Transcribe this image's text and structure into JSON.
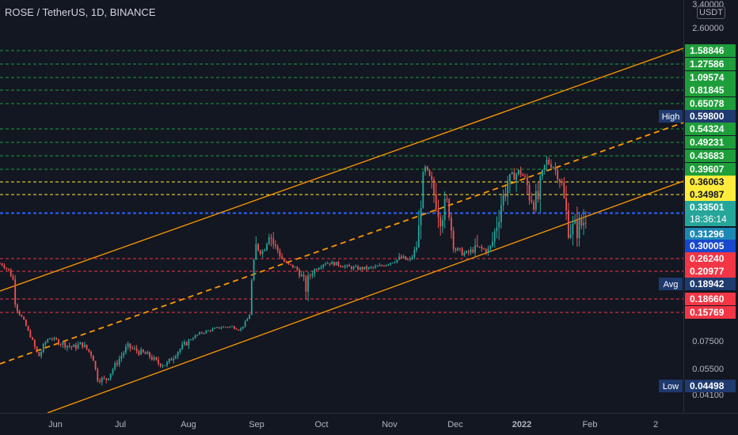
{
  "header": {
    "title": "ROSE / TetherUS, 1D, BINANCE"
  },
  "price_scale": {
    "unit": "USDT",
    "axis_ticks": [
      "3.40000",
      "2.60000",
      "0.07500",
      "0.05500",
      "0.04100"
    ],
    "hidden_tick": "0.04100"
  },
  "time_axis": {
    "labels": [
      "Jun",
      "Jul",
      "Aug",
      "Sep",
      "Oct",
      "Nov",
      "Dec",
      "2022",
      "Feb",
      "2"
    ]
  },
  "levels": {
    "resistance": [
      "1.58846",
      "1.27586",
      "1.09574",
      "0.81845",
      "0.65078",
      "0.54324",
      "0.49231",
      "0.43683",
      "0.39607"
    ],
    "pivot": [
      "0.36063",
      "0.34987"
    ],
    "support": [
      "0.26240",
      "0.20977",
      "0.18660",
      "0.15769"
    ]
  },
  "markers": {
    "high": {
      "label": "High",
      "value": "0.59800"
    },
    "avg": {
      "label": "Avg",
      "value": "0.18942"
    },
    "low": {
      "label": "Low",
      "value": "0.04498"
    }
  },
  "last_price": {
    "value": "0.33501",
    "countdown": "18:36:14"
  },
  "extra_badges": {
    "first": "0.31296",
    "second": "0.30005"
  },
  "colors": {
    "background": "#131722",
    "up": "#26a69a",
    "down": "#ef5350",
    "resistance": "#1e9e3a",
    "pivot": "#ffeb3b",
    "support": "#f23645",
    "channel": "#ff9800",
    "last_price_line": "#2962ff",
    "axis_text": "#b2b5be"
  },
  "chart_data": {
    "type": "candlestick",
    "title": "ROSE / TetherUS, 1D, BINANCE",
    "scale": "log",
    "ylim": [
      0.041,
      3.4
    ],
    "x_range": [
      "2021-05-10",
      "2022-02-20"
    ],
    "close_series": [
      [
        "2021-05-10",
        0.24
      ],
      [
        "2021-05-15",
        0.2
      ],
      [
        "2021-05-20",
        0.13
      ],
      [
        "2021-05-24",
        0.075
      ],
      [
        "2021-05-27",
        0.062
      ],
      [
        "2021-06-01",
        0.08
      ],
      [
        "2021-06-06",
        0.073
      ],
      [
        "2021-06-12",
        0.069
      ],
      [
        "2021-06-16",
        0.072
      ],
      [
        "2021-06-21",
        0.063
      ],
      [
        "2021-06-23",
        0.049
      ],
      [
        "2021-06-27",
        0.048
      ],
      [
        "2021-07-02",
        0.058
      ],
      [
        "2021-07-07",
        0.07
      ],
      [
        "2021-07-12",
        0.066
      ],
      [
        "2021-07-17",
        0.063
      ],
      [
        "2021-07-21",
        0.058
      ],
      [
        "2021-07-25",
        0.057
      ],
      [
        "2021-07-30",
        0.066
      ],
      [
        "2021-08-04",
        0.074
      ],
      [
        "2021-08-09",
        0.089
      ],
      [
        "2021-08-14",
        0.098
      ],
      [
        "2021-08-19",
        0.106
      ],
      [
        "2021-08-24",
        0.108
      ],
      [
        "2021-08-28",
        0.099
      ],
      [
        "2021-09-01",
        0.14
      ],
      [
        "2021-09-04",
        0.3
      ],
      [
        "2021-09-07",
        0.28
      ],
      [
        "2021-09-10",
        0.32
      ],
      [
        "2021-09-14",
        0.29
      ],
      [
        "2021-09-18",
        0.24
      ],
      [
        "2021-09-22",
        0.225
      ],
      [
        "2021-09-27",
        0.19
      ],
      [
        "2021-10-01",
        0.215
      ],
      [
        "2021-10-06",
        0.245
      ],
      [
        "2021-10-11",
        0.24
      ],
      [
        "2021-10-16",
        0.227
      ],
      [
        "2021-10-21",
        0.221
      ],
      [
        "2021-10-26",
        0.221
      ],
      [
        "2021-10-31",
        0.228
      ],
      [
        "2021-11-05",
        0.245
      ],
      [
        "2021-11-10",
        0.265
      ],
      [
        "2021-11-14",
        0.253
      ],
      [
        "2021-11-18",
        0.308
      ],
      [
        "2021-11-21",
        0.4
      ],
      [
        "2021-11-24",
        0.36
      ],
      [
        "2021-11-28",
        0.33
      ],
      [
        "2021-12-02",
        0.34
      ],
      [
        "2021-12-05",
        0.29
      ],
      [
        "2021-12-10",
        0.275
      ],
      [
        "2021-12-15",
        0.295
      ],
      [
        "2021-12-20",
        0.285
      ],
      [
        "2021-12-25",
        0.33
      ],
      [
        "2021-12-30",
        0.37
      ],
      [
        "2022-01-04",
        0.39
      ],
      [
        "2022-01-08",
        0.35
      ],
      [
        "2022-01-12",
        0.34
      ],
      [
        "2022-01-16",
        0.42
      ],
      [
        "2022-01-19",
        0.41
      ],
      [
        "2022-01-23",
        0.36
      ],
      [
        "2022-01-26",
        0.32
      ],
      [
        "2022-01-29",
        0.315
      ],
      [
        "2022-02-02",
        0.322
      ],
      [
        "2022-02-04",
        0.335
      ]
    ]
  }
}
